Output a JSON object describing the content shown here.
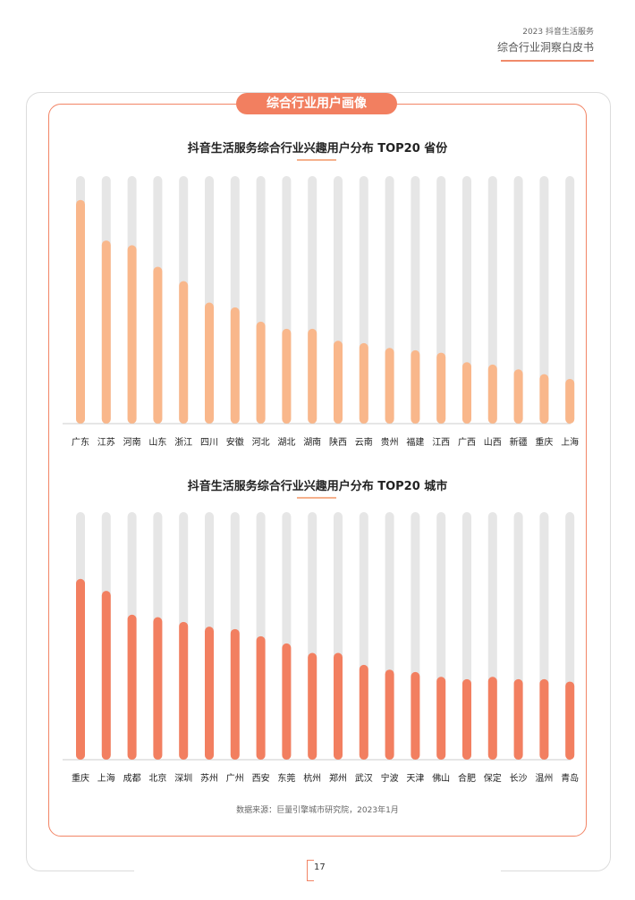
{
  "header": {
    "top_label": "2023 抖音生活服务",
    "main_title": "综合行业洞察白皮书"
  },
  "section_label": "综合行业用户画像",
  "source_note": "数据来源：巨量引擎城市研究院，2023年1月",
  "page_number": "17",
  "colors": {
    "accent": "#f27f60",
    "province_bar": "#f9b78b",
    "city_bar": "#f27f60",
    "track": "#e6e6e6"
  },
  "chart_data": [
    {
      "type": "bar",
      "title": "抖音生活服务综合行业兴趣用户分布 TOP20 省份",
      "categories": [
        "广东",
        "江苏",
        "河南",
        "山东",
        "浙江",
        "四川",
        "安徽",
        "河北",
        "湖北",
        "湖南",
        "陕西",
        "云南",
        "贵州",
        "福建",
        "江西",
        "广西",
        "山西",
        "新疆",
        "重庆",
        "上海"
      ],
      "values": [
        90,
        73,
        71,
        62,
        56,
        47,
        45,
        39,
        36,
        36,
        31,
        30,
        28,
        27,
        26,
        22,
        21,
        19,
        17,
        15
      ],
      "ylim": [
        0,
        100
      ],
      "grid": false
    },
    {
      "type": "bar",
      "title": "抖音生活服务综合行业兴趣用户分布 TOP20 城市",
      "categories": [
        "重庆",
        "上海",
        "成都",
        "北京",
        "深圳",
        "苏州",
        "广州",
        "西安",
        "东莞",
        "杭州",
        "郑州",
        "武汉",
        "宁波",
        "天津",
        "佛山",
        "合肥",
        "保定",
        "长沙",
        "温州",
        "青岛"
      ],
      "values": [
        72,
        67,
        57,
        56,
        54,
        52,
        51,
        48,
        45,
        41,
        41,
        36,
        34,
        33,
        31,
        30,
        31,
        30,
        30,
        29
      ],
      "ylim": [
        0,
        100
      ],
      "grid": false
    }
  ]
}
